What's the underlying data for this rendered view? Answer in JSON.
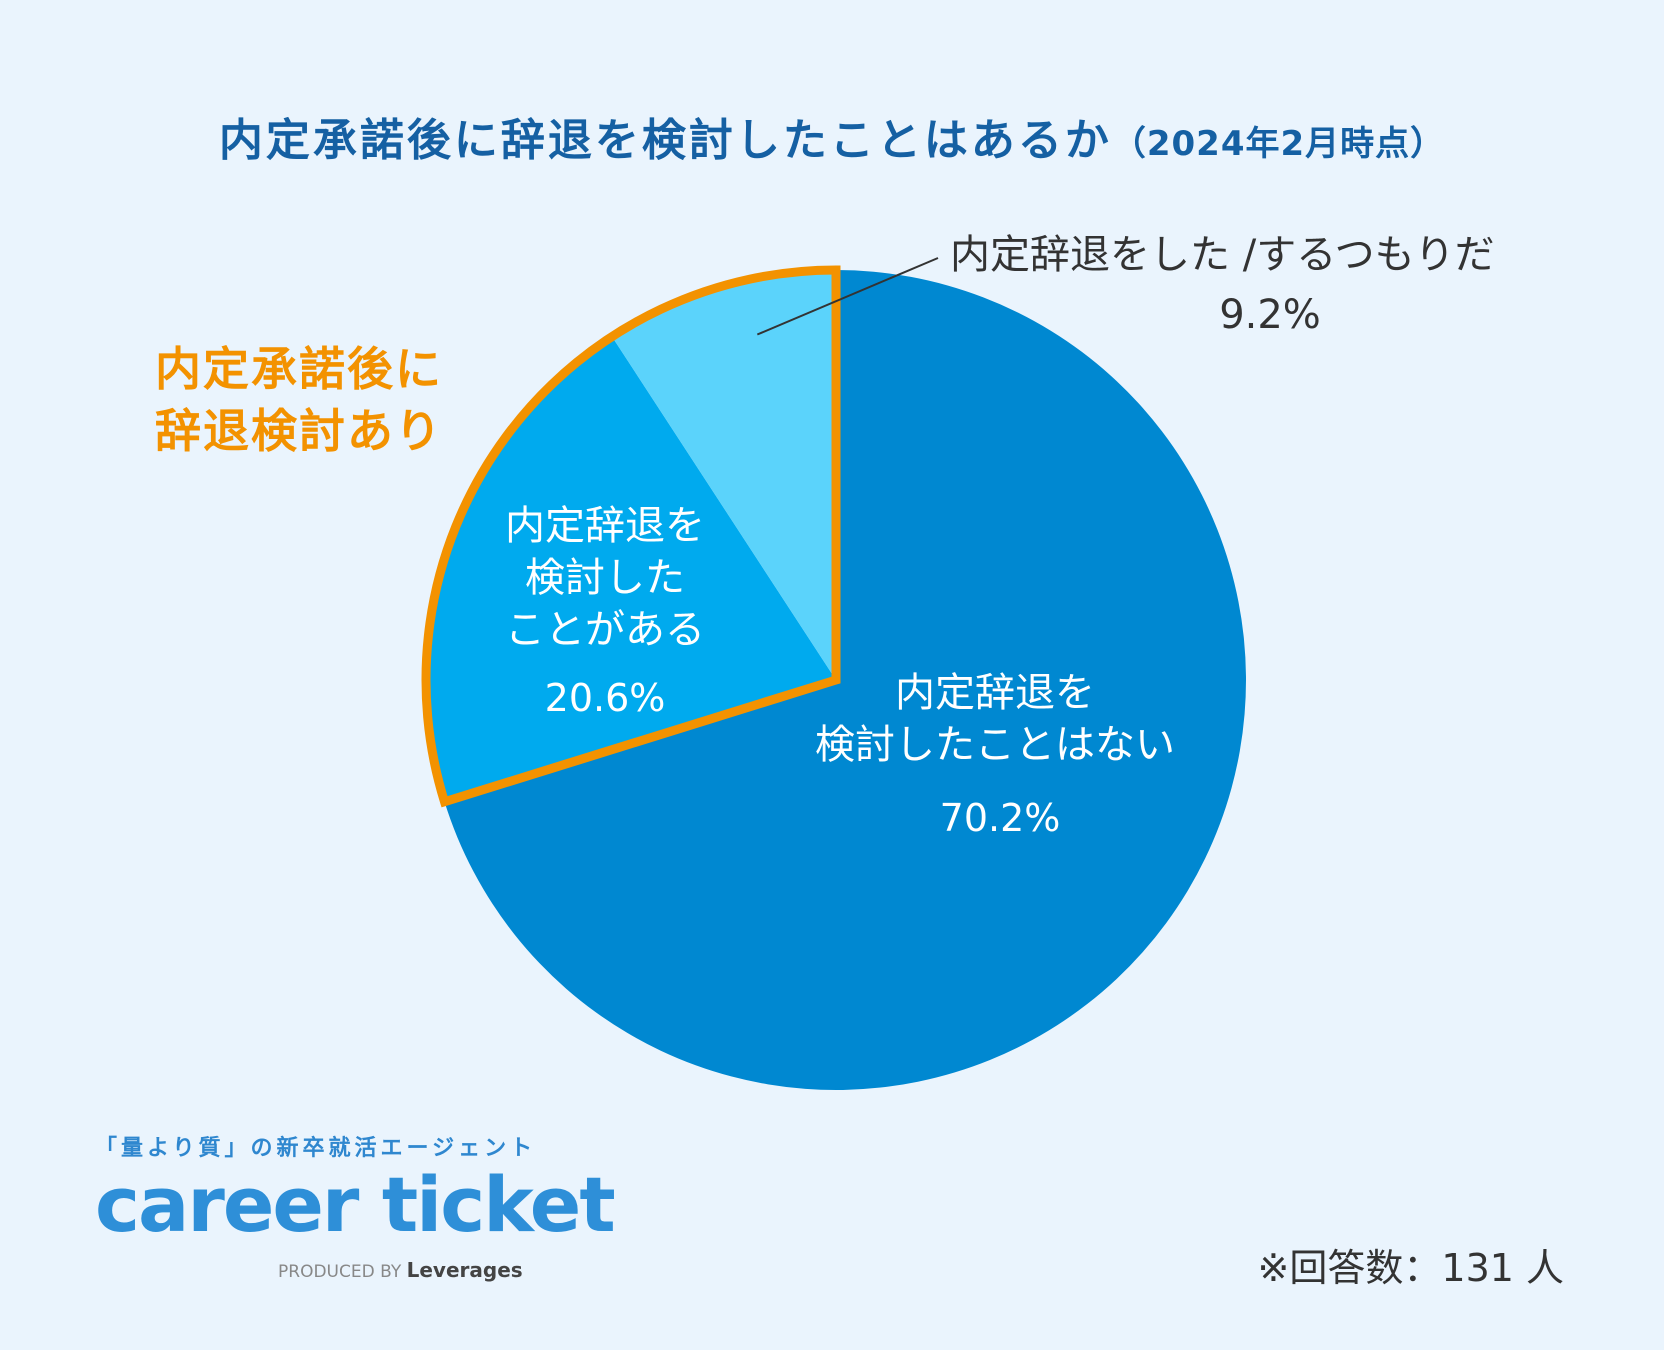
{
  "title": {
    "main": "内定承諾後に辞退を検討したことはあるか",
    "sub": "（2024年2月時点）"
  },
  "chart_data": {
    "type": "pie",
    "title": "内定承諾後に辞退を検討したことはあるか（2024年2月時点）",
    "slices": [
      {
        "label": "内定辞退を検討したことはない",
        "value": 70.2,
        "display": "70.2%",
        "color": "#0088d1"
      },
      {
        "label": "内定辞退を検討したことがある",
        "value": 20.6,
        "display": "20.6%",
        "color": "#00aaee"
      },
      {
        "label": "内定辞退をした /するつもりだ",
        "value": 9.2,
        "display": "9.2%",
        "color": "#5bd3fb"
      }
    ],
    "group_highlight": {
      "label": "内定承諾後に辞退検討あり",
      "color": "#f39200"
    },
    "unit": "%"
  },
  "labels": {
    "top_line1": "内定辞退をした /するつもりだ",
    "top_pct": "9.2%",
    "orange_line1": "内定承諾後に",
    "orange_line2": "辞退検討あり",
    "mid_line1": "内定辞退を",
    "mid_line2": "検討した",
    "mid_line3": "ことがある",
    "mid_pct": "20.6%",
    "big_line1": "内定辞退を",
    "big_line2": "検討したことはない",
    "big_pct": "70.2%"
  },
  "logo": {
    "tagline": "「量より質」の新卒就活エージェント",
    "name": "career ticket",
    "produced_by": "PRODUCED BY",
    "brand": "Leverages"
  },
  "respondents": "※回答数：131 人"
}
